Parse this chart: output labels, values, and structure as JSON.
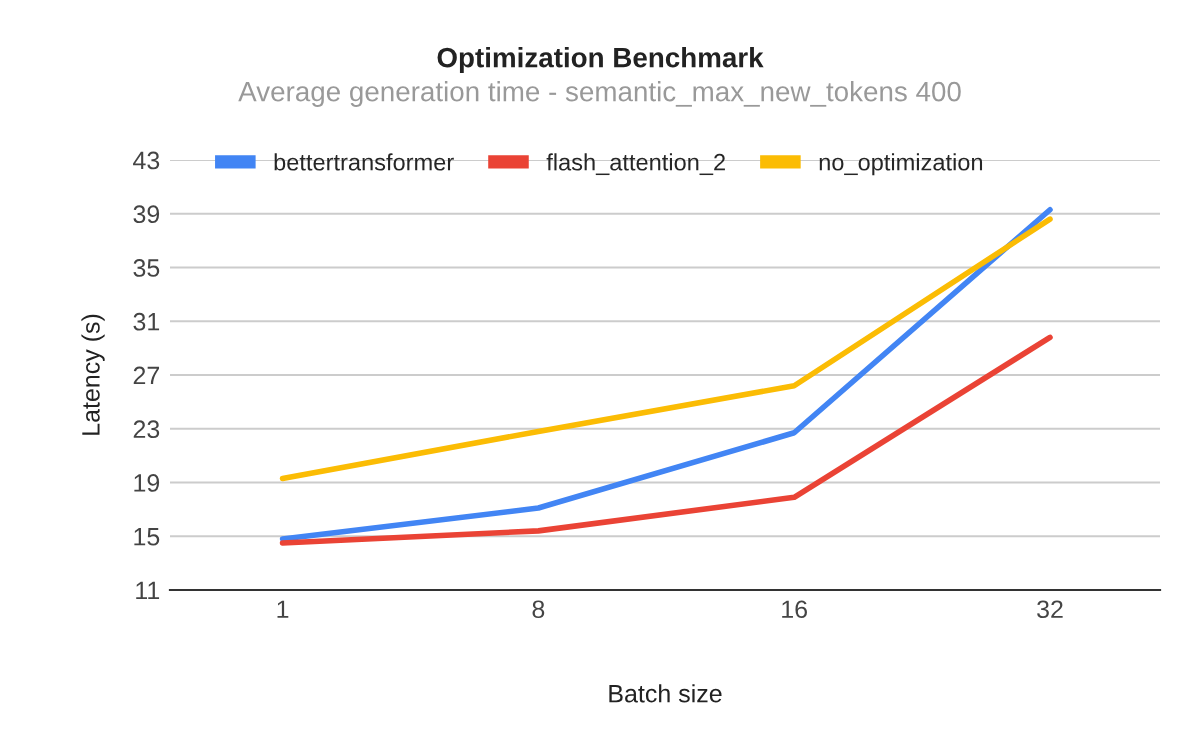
{
  "chart_data": {
    "type": "line",
    "title": "Optimization Benchmark",
    "subtitle": "Average generation time - semantic_max_new_tokens 400",
    "xlabel": "Batch size",
    "ylabel": "Latency (s)",
    "categories": [
      "1",
      "8",
      "16",
      "32"
    ],
    "series": [
      {
        "name": "bettertransformer",
        "color": "#4285f4",
        "values": [
          14.8,
          17.1,
          22.7,
          39.3
        ]
      },
      {
        "name": "flash_attention_2",
        "color": "#ea4335",
        "values": [
          14.5,
          15.4,
          17.9,
          29.8
        ]
      },
      {
        "name": "no_optimization",
        "color": "#fbbc04",
        "values": [
          19.3,
          22.8,
          26.2,
          38.6
        ]
      }
    ],
    "ylim": [
      11,
      43
    ],
    "yticks": [
      11,
      15,
      19,
      23,
      27,
      31,
      35,
      39,
      43
    ],
    "grid": "y",
    "legend": "top",
    "marker": "none",
    "line_style": "solid"
  }
}
